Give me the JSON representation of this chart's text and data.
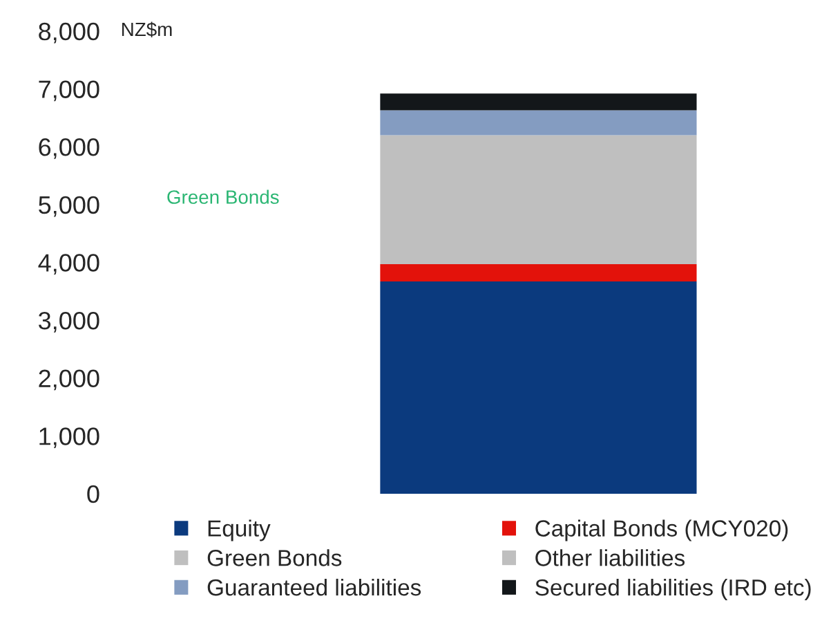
{
  "chart_data": {
    "type": "bar",
    "stacked": true,
    "ylabel": "NZ$m",
    "categories": [
      null
    ],
    "series": [
      {
        "name": "Equity",
        "color": "#0b3a7e",
        "values": [
          3670
        ]
      },
      {
        "name": "Capital Bonds (MCY020)",
        "color": "#e3120b",
        "values": [
          300
        ]
      },
      {
        "name": "Green Bonds",
        "color": "#bfbfbf",
        "values": [
          null
        ]
      },
      {
        "name": "Other liabilities",
        "color": "#bfbfbf",
        "values": [
          2230
        ]
      },
      {
        "name": "Guaranteed liabilities",
        "color": "#849cc1",
        "values": [
          430
        ]
      },
      {
        "name": "Secured liabilities (IRD etc)",
        "color": "#13171a",
        "values": [
          290
        ]
      }
    ],
    "ylim": [
      0,
      8000
    ],
    "yticks": [
      {
        "value": 0,
        "label": "0"
      },
      {
        "value": 1000,
        "label": "1,000"
      },
      {
        "value": 2000,
        "label": "2,000"
      },
      {
        "value": 3000,
        "label": "3,000"
      },
      {
        "value": 4000,
        "label": "4,000"
      },
      {
        "value": 5000,
        "label": "5,000"
      },
      {
        "value": 6000,
        "label": "6,000"
      },
      {
        "value": 7000,
        "label": "7,000"
      },
      {
        "value": 8000,
        "label": "8,000"
      }
    ],
    "annotations": [
      "Green Bonds"
    ],
    "legend": "bottom",
    "grid": false
  }
}
